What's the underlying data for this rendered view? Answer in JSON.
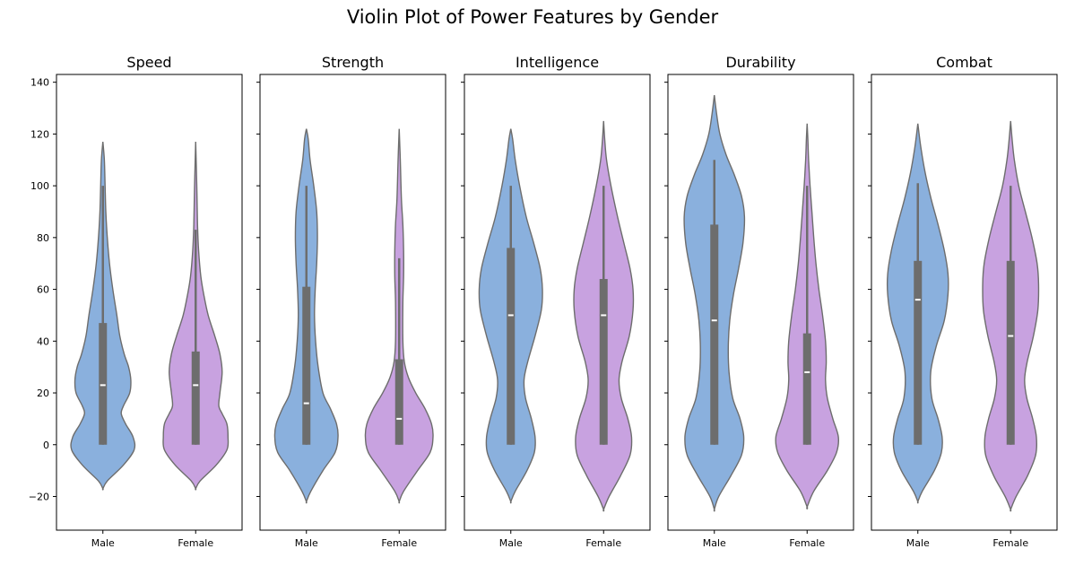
{
  "chart_data": {
    "type": "violin",
    "title": "Violin Plot of Power Features by Gender",
    "yticks": [
      -20,
      0,
      20,
      40,
      60,
      80,
      100,
      120,
      140
    ],
    "ylim": [
      -33,
      143
    ],
    "categories": [
      "Male",
      "Female"
    ],
    "colors": {
      "Male": "#8ab0dd",
      "Female": "#c8a2e0",
      "box": "#6d6d6d",
      "outline": "#6d6d6d"
    },
    "panels": [
      {
        "title": "Speed",
        "groups": [
          {
            "name": "Male",
            "min": 0,
            "q1": 0,
            "median": 23,
            "q3": 47,
            "whisker_high": 100,
            "kde_min": -17,
            "kde_max": 117,
            "profile": [
              [
                -17,
                0
              ],
              [
                -14,
                0.12
              ],
              [
                -8,
                0.55
              ],
              [
                -2,
                0.85
              ],
              [
                3,
                0.82
              ],
              [
                8,
                0.62
              ],
              [
                12,
                0.5
              ],
              [
                15,
                0.56
              ],
              [
                20,
                0.73
              ],
              [
                25,
                0.76
              ],
              [
                30,
                0.7
              ],
              [
                35,
                0.58
              ],
              [
                42,
                0.46
              ],
              [
                50,
                0.38
              ],
              [
                60,
                0.27
              ],
              [
                70,
                0.18
              ],
              [
                80,
                0.12
              ],
              [
                90,
                0.08
              ],
              [
                100,
                0.06
              ],
              [
                110,
                0.04
              ],
              [
                117,
                0
              ]
            ]
          },
          {
            "name": "Female",
            "min": 0,
            "q1": 0,
            "median": 23,
            "q3": 36,
            "whisker_high": 83,
            "kde_min": -17,
            "kde_max": 117,
            "profile": [
              [
                -17,
                0
              ],
              [
                -14,
                0.12
              ],
              [
                -8,
                0.55
              ],
              [
                -2,
                0.85
              ],
              [
                3,
                0.88
              ],
              [
                8,
                0.85
              ],
              [
                12,
                0.72
              ],
              [
                15,
                0.63
              ],
              [
                20,
                0.66
              ],
              [
                28,
                0.72
              ],
              [
                35,
                0.66
              ],
              [
                42,
                0.52
              ],
              [
                50,
                0.34
              ],
              [
                58,
                0.22
              ],
              [
                65,
                0.14
              ],
              [
                75,
                0.08
              ],
              [
                85,
                0.05
              ],
              [
                100,
                0.03
              ],
              [
                117,
                0
              ]
            ]
          }
        ]
      },
      {
        "title": "Strength",
        "groups": [
          {
            "name": "Male",
            "min": 0,
            "q1": 0,
            "median": 16,
            "q3": 61,
            "whisker_high": 100,
            "kde_min": -22,
            "kde_max": 122,
            "profile": [
              [
                -22,
                0
              ],
              [
                -18,
                0.12
              ],
              [
                -10,
                0.45
              ],
              [
                -3,
                0.78
              ],
              [
                3,
                0.86
              ],
              [
                8,
                0.82
              ],
              [
                14,
                0.65
              ],
              [
                20,
                0.45
              ],
              [
                30,
                0.32
              ],
              [
                40,
                0.25
              ],
              [
                50,
                0.22
              ],
              [
                60,
                0.24
              ],
              [
                70,
                0.28
              ],
              [
                80,
                0.3
              ],
              [
                90,
                0.28
              ],
              [
                100,
                0.2
              ],
              [
                110,
                0.1
              ],
              [
                118,
                0.05
              ],
              [
                122,
                0
              ]
            ]
          },
          {
            "name": "Female",
            "min": 0,
            "q1": 0,
            "median": 10,
            "q3": 33,
            "whisker_high": 72,
            "kde_min": -22,
            "kde_max": 122,
            "profile": [
              [
                -22,
                0
              ],
              [
                -18,
                0.12
              ],
              [
                -10,
                0.5
              ],
              [
                -3,
                0.84
              ],
              [
                3,
                0.92
              ],
              [
                8,
                0.88
              ],
              [
                14,
                0.7
              ],
              [
                20,
                0.45
              ],
              [
                26,
                0.25
              ],
              [
                32,
                0.14
              ],
              [
                40,
                0.1
              ],
              [
                55,
                0.1
              ],
              [
                65,
                0.12
              ],
              [
                75,
                0.12
              ],
              [
                85,
                0.1
              ],
              [
                95,
                0.06
              ],
              [
                110,
                0.03
              ],
              [
                122,
                0
              ]
            ]
          }
        ]
      },
      {
        "title": "Intelligence",
        "groups": [
          {
            "name": "Male",
            "min": 0,
            "q1": 0,
            "median": 50,
            "q3": 76,
            "whisker_high": 100,
            "kde_min": -22,
            "kde_max": 122,
            "profile": [
              [
                -22,
                0
              ],
              [
                -18,
                0.12
              ],
              [
                -10,
                0.44
              ],
              [
                -3,
                0.64
              ],
              [
                3,
                0.66
              ],
              [
                10,
                0.56
              ],
              [
                18,
                0.4
              ],
              [
                25,
                0.36
              ],
              [
                32,
                0.46
              ],
              [
                42,
                0.66
              ],
              [
                52,
                0.83
              ],
              [
                60,
                0.86
              ],
              [
                68,
                0.8
              ],
              [
                78,
                0.62
              ],
              [
                88,
                0.42
              ],
              [
                100,
                0.24
              ],
              [
                110,
                0.12
              ],
              [
                118,
                0.05
              ],
              [
                122,
                0
              ]
            ]
          },
          {
            "name": "Female",
            "min": 0,
            "q1": 0,
            "median": 50,
            "q3": 64,
            "whisker_high": 100,
            "kde_min": -25,
            "kde_max": 125,
            "profile": [
              [
                -25,
                0
              ],
              [
                -20,
                0.15
              ],
              [
                -12,
                0.46
              ],
              [
                -4,
                0.72
              ],
              [
                3,
                0.76
              ],
              [
                10,
                0.66
              ],
              [
                18,
                0.48
              ],
              [
                25,
                0.42
              ],
              [
                32,
                0.5
              ],
              [
                42,
                0.7
              ],
              [
                52,
                0.8
              ],
              [
                60,
                0.8
              ],
              [
                68,
                0.72
              ],
              [
                78,
                0.55
              ],
              [
                88,
                0.38
              ],
              [
                100,
                0.2
              ],
              [
                110,
                0.08
              ],
              [
                118,
                0.03
              ],
              [
                125,
                0
              ]
            ]
          }
        ]
      },
      {
        "title": "Durability",
        "groups": [
          {
            "name": "Male",
            "min": 0,
            "q1": 0,
            "median": 48,
            "q3": 85,
            "whisker_high": 110,
            "kde_min": -25,
            "kde_max": 135,
            "profile": [
              [
                -25,
                0
              ],
              [
                -20,
                0.12
              ],
              [
                -12,
                0.45
              ],
              [
                -4,
                0.74
              ],
              [
                3,
                0.8
              ],
              [
                10,
                0.7
              ],
              [
                18,
                0.5
              ],
              [
                28,
                0.4
              ],
              [
                38,
                0.38
              ],
              [
                48,
                0.42
              ],
              [
                58,
                0.52
              ],
              [
                68,
                0.66
              ],
              [
                78,
                0.78
              ],
              [
                88,
                0.82
              ],
              [
                96,
                0.74
              ],
              [
                104,
                0.55
              ],
              [
                112,
                0.32
              ],
              [
                120,
                0.15
              ],
              [
                128,
                0.06
              ],
              [
                135,
                0
              ]
            ]
          },
          {
            "name": "Female",
            "min": 0,
            "q1": 0,
            "median": 28,
            "q3": 43,
            "whisker_high": 100,
            "kde_min": -24,
            "kde_max": 124,
            "profile": [
              [
                -24,
                0
              ],
              [
                -18,
                0.18
              ],
              [
                -10,
                0.55
              ],
              [
                -3,
                0.8
              ],
              [
                3,
                0.85
              ],
              [
                10,
                0.7
              ],
              [
                18,
                0.55
              ],
              [
                25,
                0.5
              ],
              [
                32,
                0.52
              ],
              [
                40,
                0.5
              ],
              [
                50,
                0.42
              ],
              [
                60,
                0.32
              ],
              [
                70,
                0.24
              ],
              [
                80,
                0.18
              ],
              [
                90,
                0.13
              ],
              [
                100,
                0.08
              ],
              [
                110,
                0.04
              ],
              [
                118,
                0.02
              ],
              [
                124,
                0
              ]
            ]
          }
        ]
      },
      {
        "title": "Combat",
        "groups": [
          {
            "name": "Male",
            "min": 0,
            "q1": 0,
            "median": 56,
            "q3": 71,
            "whisker_high": 101,
            "kde_min": -22,
            "kde_max": 124,
            "profile": [
              [
                -22,
                0
              ],
              [
                -18,
                0.12
              ],
              [
                -10,
                0.45
              ],
              [
                -3,
                0.64
              ],
              [
                3,
                0.66
              ],
              [
                10,
                0.55
              ],
              [
                18,
                0.38
              ],
              [
                28,
                0.35
              ],
              [
                38,
                0.5
              ],
              [
                48,
                0.72
              ],
              [
                58,
                0.82
              ],
              [
                66,
                0.82
              ],
              [
                75,
                0.72
              ],
              [
                85,
                0.55
              ],
              [
                95,
                0.36
              ],
              [
                105,
                0.2
              ],
              [
                115,
                0.08
              ],
              [
                124,
                0
              ]
            ]
          },
          {
            "name": "Female",
            "min": 0,
            "q1": 0,
            "median": 42,
            "q3": 71,
            "whisker_high": 100,
            "kde_min": -25,
            "kde_max": 125,
            "profile": [
              [
                -25,
                0
              ],
              [
                -20,
                0.15
              ],
              [
                -12,
                0.46
              ],
              [
                -4,
                0.68
              ],
              [
                3,
                0.7
              ],
              [
                10,
                0.6
              ],
              [
                18,
                0.44
              ],
              [
                25,
                0.38
              ],
              [
                32,
                0.45
              ],
              [
                42,
                0.62
              ],
              [
                52,
                0.74
              ],
              [
                62,
                0.76
              ],
              [
                70,
                0.72
              ],
              [
                80,
                0.58
              ],
              [
                90,
                0.4
              ],
              [
                100,
                0.22
              ],
              [
                110,
                0.1
              ],
              [
                118,
                0.04
              ],
              [
                125,
                0
              ]
            ]
          }
        ]
      }
    ]
  }
}
